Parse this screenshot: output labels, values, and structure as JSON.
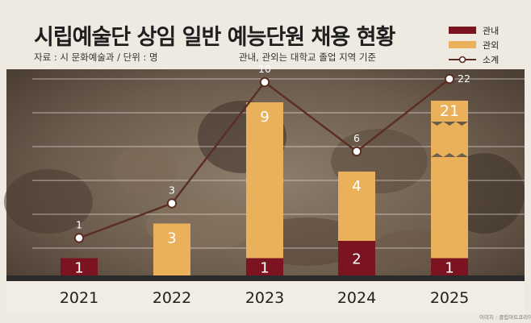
{
  "header": {
    "title": "시립예술단 상임 일반 예능단원 채용 현황",
    "source": "자료 : 시 문화예술과  /  단위 : 명",
    "note": "관내, 관외는 대학교 졸업 지역 기준",
    "credit": "이미지 : 클립아트코리아"
  },
  "legend": [
    {
      "label": "관내",
      "kind": "bar",
      "color": "#7b1420"
    },
    {
      "label": "관외",
      "kind": "bar",
      "color": "#eab15a"
    },
    {
      "label": "소계",
      "kind": "line",
      "color": "#5a2e22"
    }
  ],
  "chart_data": {
    "type": "bar",
    "stacked": true,
    "categories": [
      "2021",
      "2022",
      "2023",
      "2024",
      "2025"
    ],
    "series": [
      {
        "name": "관내",
        "values": [
          1,
          0,
          1,
          2,
          1
        ],
        "color": "#7b1420"
      },
      {
        "name": "관외",
        "values": [
          0,
          3,
          9,
          4,
          21
        ],
        "color": "#eab15a"
      }
    ],
    "line": {
      "name": "소계",
      "values": [
        1,
        3,
        10,
        6,
        22
      ],
      "color": "#5a2e22"
    },
    "axis_break_on": "2025",
    "grid": true,
    "legend_position": "top-right"
  }
}
